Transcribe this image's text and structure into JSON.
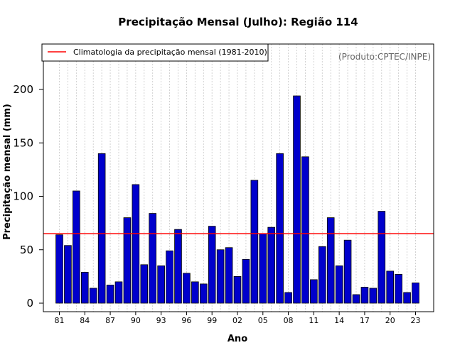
{
  "chart_data": {
    "type": "bar",
    "title": "Precipitação Mensal (Julho): Região 114",
    "xlabel": "Ano",
    "ylabel": "Precipitação mensal (mm)",
    "credit": "(Produto:CPTEC/INPE)",
    "legend": {
      "entries": [
        "Climatologia da precipitação mensal (1981-2010)"
      ],
      "placement": "top-left"
    },
    "ylim": [
      0,
      240
    ],
    "yticks": [
      0,
      50,
      100,
      150,
      200
    ],
    "grid": "vertical-dotted",
    "categories": [
      "81",
      "82",
      "83",
      "84",
      "85",
      "86",
      "87",
      "88",
      "89",
      "90",
      "91",
      "92",
      "93",
      "94",
      "95",
      "96",
      "97",
      "98",
      "99",
      "00",
      "01",
      "02",
      "03",
      "04",
      "05",
      "06",
      "07",
      "08",
      "09",
      "10",
      "11",
      "12",
      "13",
      "14",
      "15",
      "16",
      "17",
      "18",
      "19",
      "20",
      "21",
      "22",
      "23"
    ],
    "xtick_labels": [
      "81",
      "84",
      "87",
      "90",
      "93",
      "96",
      "99",
      "02",
      "05",
      "08",
      "11",
      "14",
      "17",
      "20",
      "23"
    ],
    "values": [
      64,
      54,
      105,
      29,
      14,
      140,
      17,
      20,
      80,
      111,
      36,
      84,
      35,
      49,
      69,
      28,
      20,
      18,
      72,
      50,
      52,
      25,
      41,
      115,
      65,
      71,
      140,
      10,
      194,
      137,
      22,
      53,
      80,
      35,
      59,
      8,
      15,
      14,
      86,
      30,
      27,
      10,
      19
    ],
    "climatology": 65,
    "colors": {
      "bar": "#0000CC",
      "bar_edge": "#000000",
      "climatology": "#FF0000",
      "grid": "#C8C8C8",
      "credit": "#666666"
    }
  }
}
